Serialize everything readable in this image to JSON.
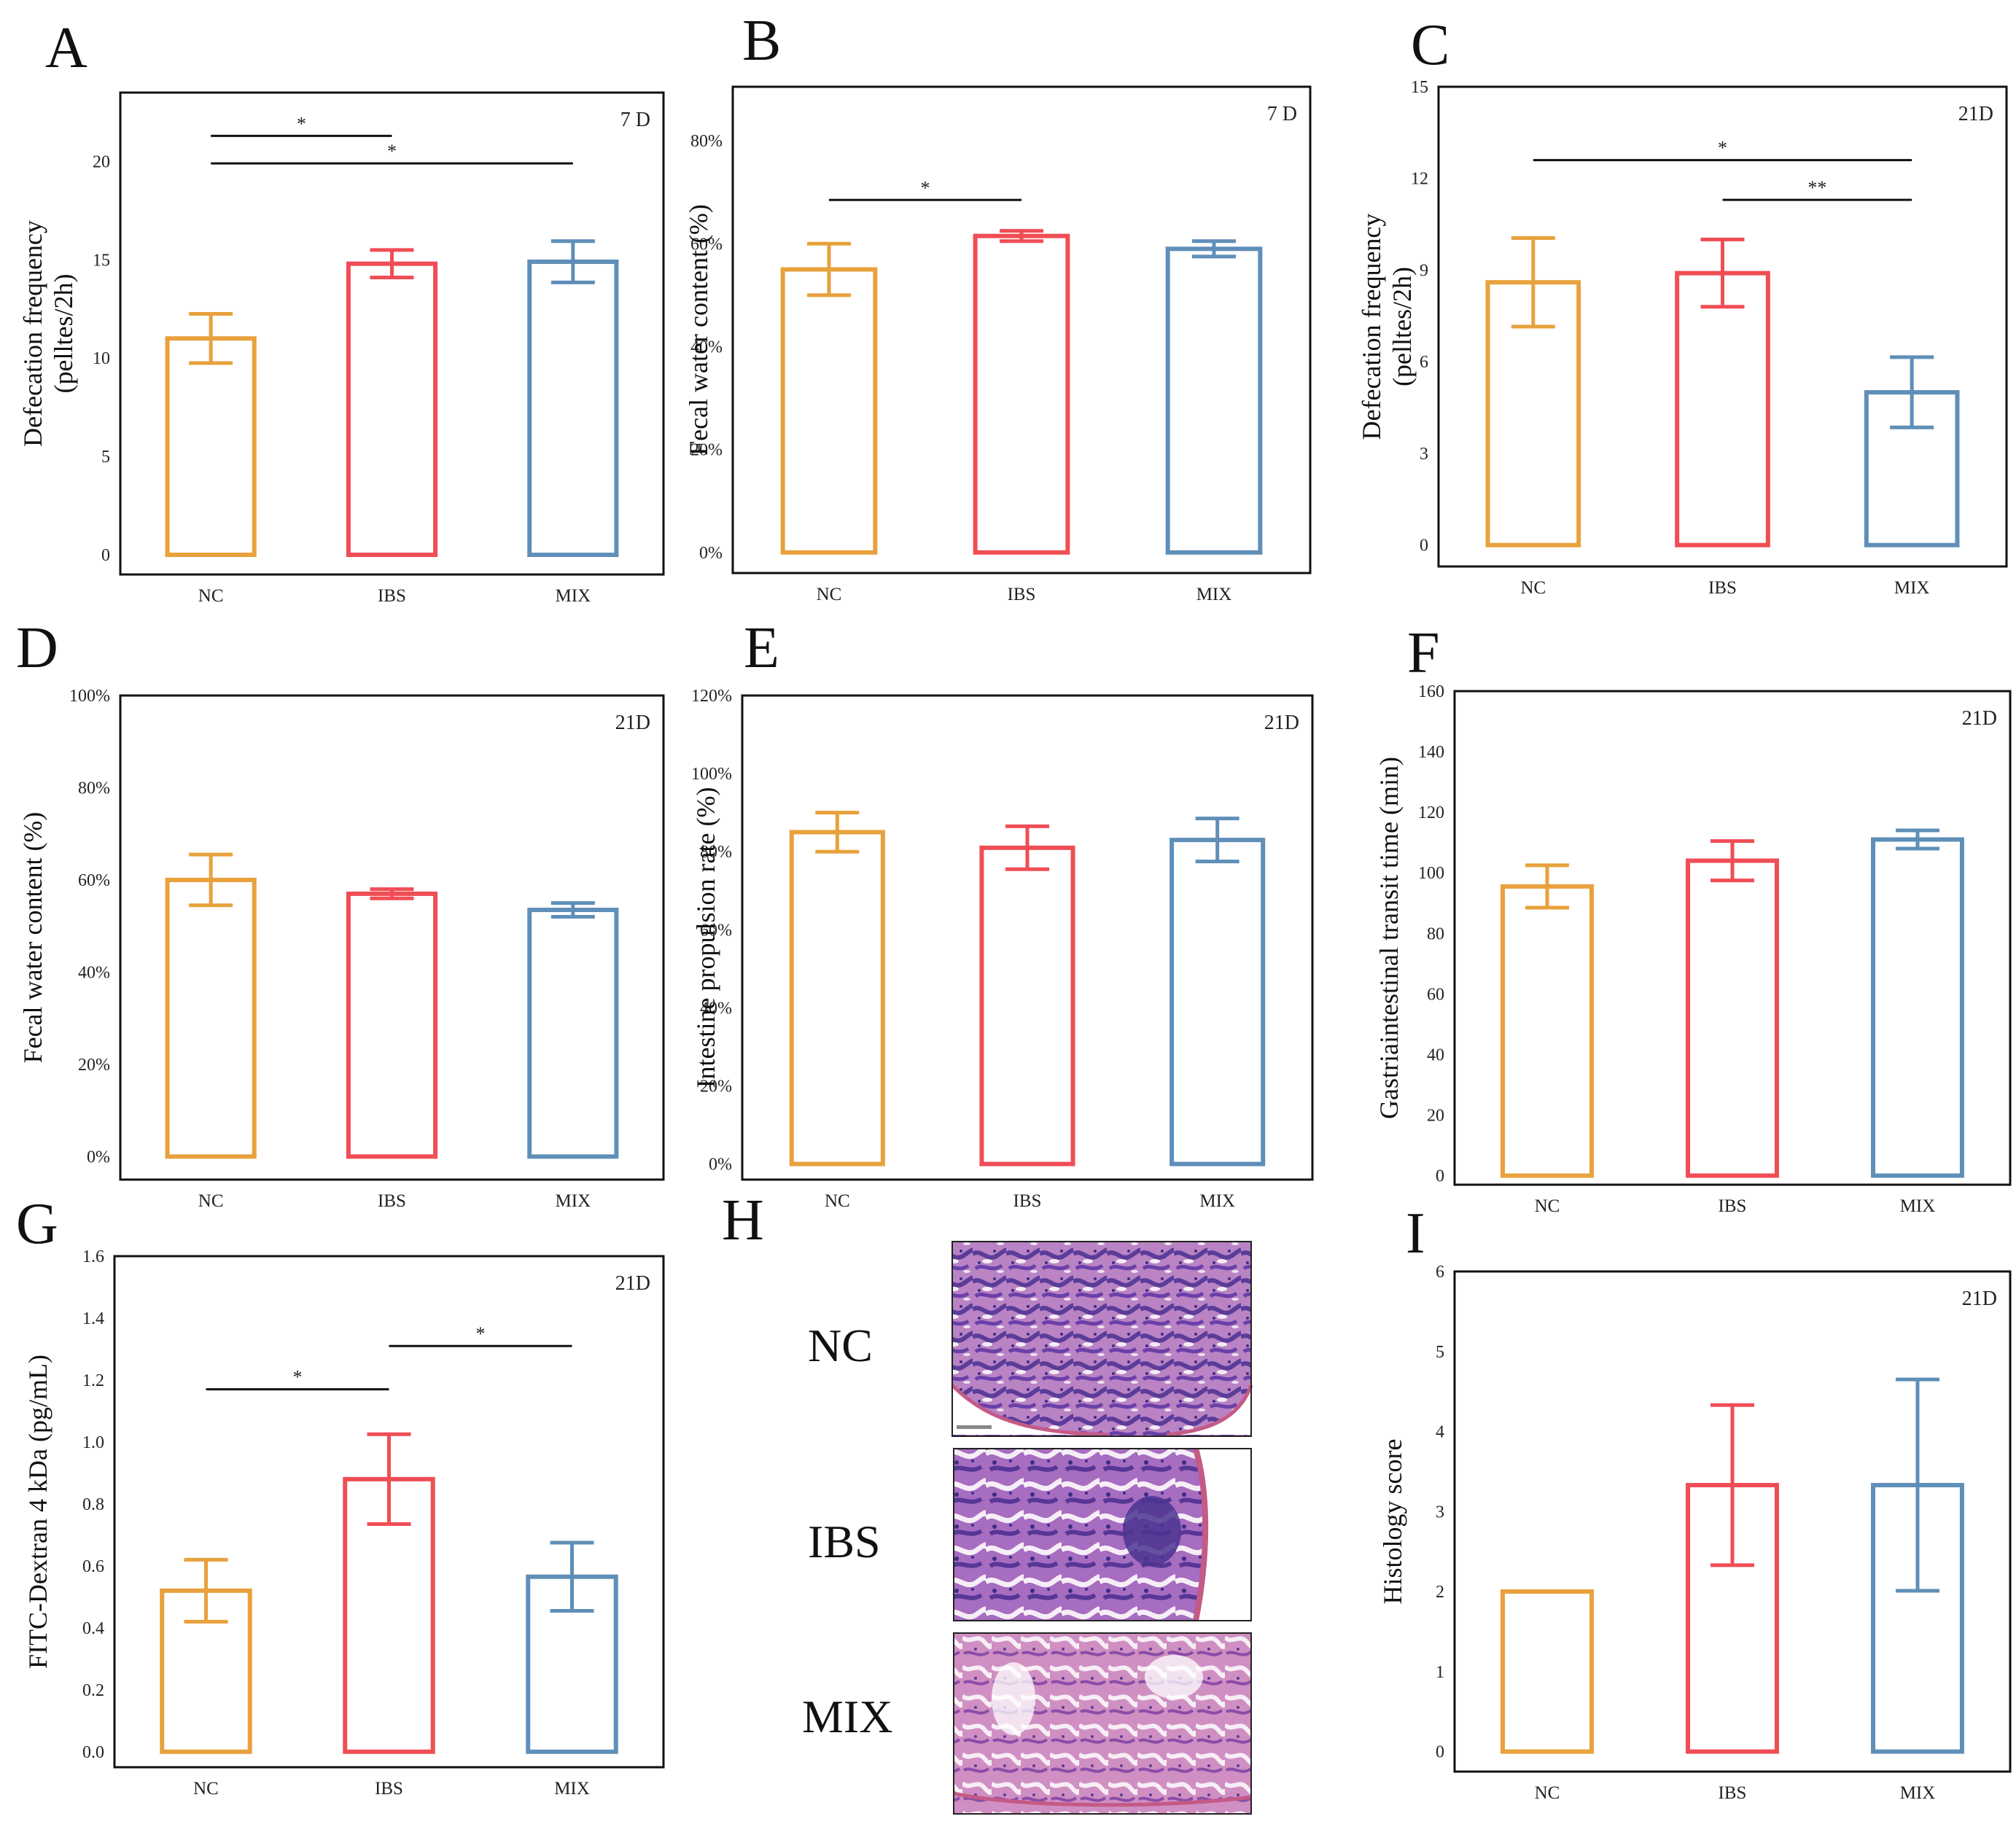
{
  "colors": {
    "NC": "#e8a13c",
    "IBS": "#f04d55",
    "MIX": "#5f8fb8",
    "frame": "#111111"
  },
  "chart_data": [
    {
      "letter": "A",
      "type": "bar",
      "tag": "7 D",
      "ylabel": [
        "Defecation frequency",
        "(pelltes/2h)"
      ],
      "categories": [
        "NC",
        "IBS",
        "MIX"
      ],
      "values": [
        11.0,
        14.8,
        14.9
      ],
      "errors": [
        1.25,
        0.7,
        1.05
      ],
      "ylim": [
        -1,
        23.5
      ],
      "ticks": [
        0,
        5,
        10,
        15,
        20
      ],
      "tick_format": "int",
      "significance": [
        {
          "from": 0,
          "to": 1,
          "label": "*",
          "y": 21.3
        },
        {
          "from": 0,
          "to": 2,
          "label": "*",
          "y": 19.9
        }
      ]
    },
    {
      "letter": "B",
      "type": "bar",
      "tag": "7 D",
      "ylabel": [
        "Fecal water content (%)"
      ],
      "categories": [
        "NC",
        "IBS",
        "MIX"
      ],
      "values": [
        0.55,
        0.615,
        0.59
      ],
      "errors": [
        0.05,
        0.01,
        0.015
      ],
      "ylim": [
        -0.04,
        0.905
      ],
      "ticks": [
        0,
        0.2,
        0.4,
        0.6,
        0.8
      ],
      "tick_format": "pct",
      "significance": [
        {
          "from": 0,
          "to": 1,
          "label": "*",
          "y": 0.685
        }
      ]
    },
    {
      "letter": "C",
      "type": "bar",
      "tag": "21D",
      "ylabel": [
        "Defecation frequency",
        "(pelltes/2h)"
      ],
      "categories": [
        "NC",
        "IBS",
        "MIX"
      ],
      "values": [
        8.6,
        8.9,
        5.0
      ],
      "errors": [
        1.45,
        1.1,
        1.15
      ],
      "ylim": [
        -0.7,
        15
      ],
      "ticks": [
        0,
        3,
        6,
        9,
        12,
        15
      ],
      "tick_format": "int",
      "significance": [
        {
          "from": 0,
          "to": 2,
          "label": "*",
          "y": 12.6
        },
        {
          "from": 1,
          "to": 2,
          "label": "**",
          "y": 11.3
        }
      ]
    },
    {
      "letter": "D",
      "type": "bar",
      "tag": "21D",
      "ylabel": [
        "Fecal water content (%)"
      ],
      "categories": [
        "NC",
        "IBS",
        "MIX"
      ],
      "values": [
        0.6,
        0.57,
        0.535
      ],
      "errors": [
        0.055,
        0.01,
        0.015
      ],
      "ylim": [
        -0.05,
        1.0
      ],
      "ticks": [
        0,
        0.2,
        0.4,
        0.6,
        0.8,
        1.0
      ],
      "tick_format": "pct",
      "significance": []
    },
    {
      "letter": "E",
      "type": "bar",
      "tag": "21D",
      "ylabel": [
        "Intestine propulsion rate (%)"
      ],
      "categories": [
        "NC",
        "IBS",
        "MIX"
      ],
      "values": [
        0.85,
        0.81,
        0.83
      ],
      "errors": [
        0.05,
        0.055,
        0.055
      ],
      "ylim": [
        -0.04,
        1.2
      ],
      "ticks": [
        0,
        0.2,
        0.4,
        0.6,
        0.8,
        1.0,
        1.2
      ],
      "tick_format": "pct",
      "significance": []
    },
    {
      "letter": "F",
      "type": "bar",
      "tag": "21D",
      "ylabel": [
        "Gastriaintestinal transit time (min)"
      ],
      "categories": [
        "NC",
        "IBS",
        "MIX"
      ],
      "values": [
        95.5,
        104,
        111
      ],
      "errors": [
        7,
        6.5,
        3
      ],
      "ylim": [
        -3,
        160
      ],
      "ticks": [
        0,
        20,
        40,
        60,
        80,
        100,
        120,
        140,
        160
      ],
      "tick_format": "int",
      "significance": []
    },
    {
      "letter": "G",
      "type": "bar",
      "tag": "21D",
      "ylabel": [
        "FITC-Dextran 4 kDa (pg/mL)"
      ],
      "categories": [
        "NC",
        "IBS",
        "MIX"
      ],
      "values": [
        0.52,
        0.88,
        0.565
      ],
      "errors": [
        0.1,
        0.145,
        0.11
      ],
      "ylim": [
        -0.05,
        1.6
      ],
      "ticks": [
        0,
        0.2,
        0.4,
        0.6,
        0.8,
        1.0,
        1.2,
        1.4,
        1.6
      ],
      "tick_format": "dec1",
      "significance": [
        {
          "from": 0,
          "to": 1,
          "label": "*",
          "y": 1.17
        },
        {
          "from": 1,
          "to": 2,
          "label": "*",
          "y": 1.31
        }
      ]
    },
    {
      "letter": "I",
      "type": "bar",
      "tag": "21D",
      "ylabel": [
        "Histology score"
      ],
      "categories": [
        "NC",
        "IBS",
        "MIX"
      ],
      "values": [
        2.0,
        3.33,
        3.33
      ],
      "errors": [
        0,
        1.0,
        1.32
      ],
      "ylim": [
        -0.25,
        6
      ],
      "ticks": [
        0,
        1,
        2,
        3,
        4,
        5,
        6
      ],
      "tick_format": "int",
      "significance": []
    }
  ],
  "histology": {
    "letter": "H",
    "rows": [
      "NC",
      "IBS",
      "MIX"
    ]
  }
}
